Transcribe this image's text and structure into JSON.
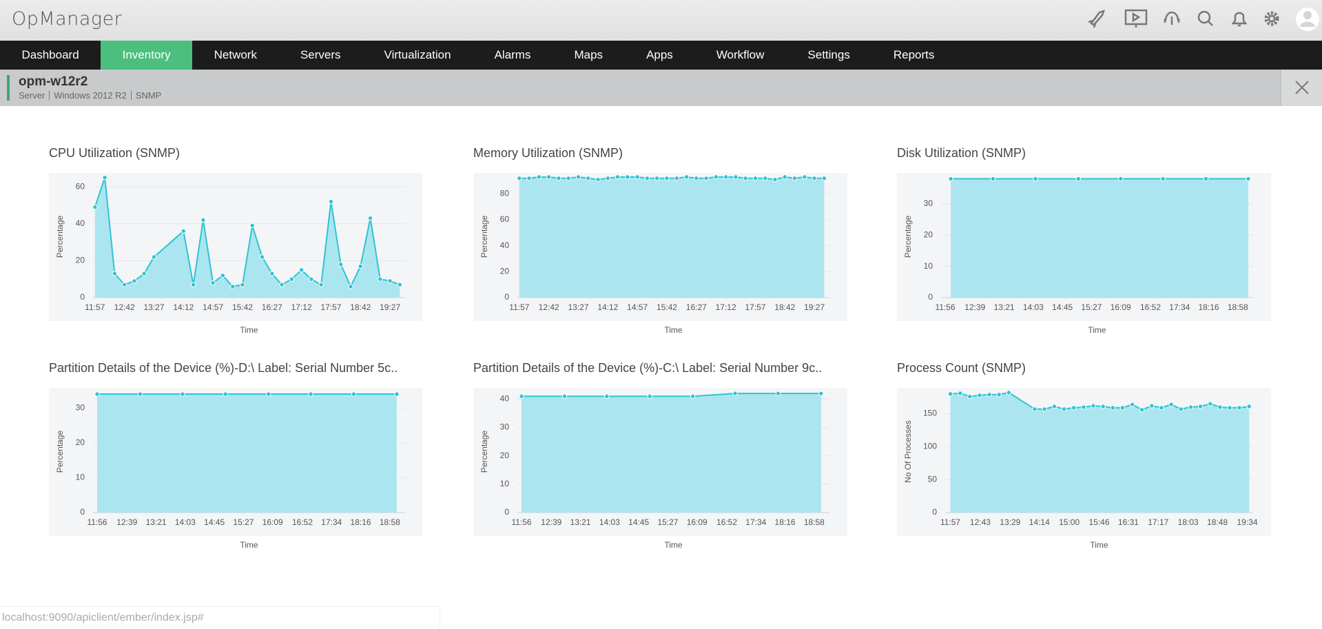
{
  "header": {
    "logo": "OpManager"
  },
  "nav": {
    "items": [
      "Dashboard",
      "Inventory",
      "Network",
      "Servers",
      "Virtualization",
      "Alarms",
      "Maps",
      "Apps",
      "Workflow",
      "Settings",
      "Reports"
    ],
    "active": 1
  },
  "device": {
    "name": "opm-w12r2",
    "details": [
      "Server",
      "Windows 2012 R2",
      "SNMP"
    ]
  },
  "status_bar": {
    "url": "localhost:9090/apiclient/ember/index.jsp#"
  },
  "chart_data": [
    {
      "type": "area",
      "title": "CPU Utilization (SNMP)",
      "x_label": "Time",
      "y_label": "Percentage",
      "color": "#2ec4d2",
      "fill": "#abe5ef",
      "grid": true,
      "x": [
        717,
        732,
        747,
        762,
        777,
        792,
        807,
        852,
        867,
        882,
        897,
        912,
        927,
        942,
        957,
        972,
        987,
        1002,
        1017,
        1032,
        1047,
        1062,
        1077,
        1092,
        1107,
        1122,
        1137,
        1152,
        1167,
        1182
      ],
      "values": [
        49,
        65,
        13,
        7,
        9,
        13,
        22,
        36,
        7,
        42,
        8,
        12,
        6,
        7,
        39,
        22,
        13,
        7,
        10,
        15,
        10,
        7,
        52,
        18,
        6,
        17,
        43,
        10,
        9,
        7
      ],
      "xlim": [
        714,
        1190
      ],
      "xticks": [
        {
          "value": 717,
          "label": "11:57"
        },
        {
          "value": 762,
          "label": "12:42"
        },
        {
          "value": 807,
          "label": "13:27"
        },
        {
          "value": 852,
          "label": "14:12"
        },
        {
          "value": 897,
          "label": "14:57"
        },
        {
          "value": 942,
          "label": "15:42"
        },
        {
          "value": 987,
          "label": "16:27"
        },
        {
          "value": 1032,
          "label": "17:12"
        },
        {
          "value": 1077,
          "label": "17:57"
        },
        {
          "value": 1122,
          "label": "18:42"
        },
        {
          "value": 1167,
          "label": "19:27"
        }
      ],
      "ylim": [
        0,
        66
      ],
      "yticks": [
        0,
        20,
        40,
        60
      ]
    },
    {
      "type": "area",
      "title": "Memory Utilization (SNMP)",
      "x_label": "Time",
      "y_label": "Percentage",
      "color": "#2ec4d2",
      "fill": "#abe5ef",
      "grid": true,
      "x": [
        717,
        732,
        747,
        762,
        777,
        792,
        807,
        822,
        837,
        852,
        867,
        882,
        897,
        912,
        927,
        942,
        957,
        972,
        987,
        1002,
        1017,
        1032,
        1047,
        1062,
        1077,
        1092,
        1107,
        1122,
        1137,
        1152,
        1167,
        1182
      ],
      "values": [
        92,
        92,
        93,
        93,
        92,
        92,
        93,
        92,
        91,
        92,
        93,
        93,
        93,
        92,
        92,
        92,
        92,
        93,
        92,
        92,
        93,
        93,
        93,
        92,
        92,
        92,
        91,
        93,
        92,
        93,
        92,
        92
      ],
      "xlim": [
        714,
        1190
      ],
      "xticks": [
        {
          "value": 717,
          "label": "11:57"
        },
        {
          "value": 762,
          "label": "12:42"
        },
        {
          "value": 807,
          "label": "13:27"
        },
        {
          "value": 852,
          "label": "14:12"
        },
        {
          "value": 897,
          "label": "14:57"
        },
        {
          "value": 942,
          "label": "15:42"
        },
        {
          "value": 987,
          "label": "16:27"
        },
        {
          "value": 1032,
          "label": "17:12"
        },
        {
          "value": 1077,
          "label": "17:57"
        },
        {
          "value": 1122,
          "label": "18:42"
        },
        {
          "value": 1167,
          "label": "19:27"
        }
      ],
      "ylim": [
        0,
        94
      ],
      "yticks": [
        0,
        20,
        40,
        60,
        80
      ]
    },
    {
      "type": "area",
      "title": "Disk Utilization (SNMP)",
      "x_label": "Time",
      "y_label": "Percentage",
      "color": "#2ec4d2",
      "fill": "#abe5ef",
      "grid": true,
      "x": [
        724,
        785,
        846,
        908,
        969,
        1030,
        1092,
        1153
      ],
      "values": [
        38,
        38,
        38,
        38,
        38,
        38,
        38,
        38
      ],
      "xlim": [
        710,
        1160
      ],
      "xticks": [
        {
          "value": 716,
          "label": "11:56"
        },
        {
          "value": 759,
          "label": "12:39"
        },
        {
          "value": 801,
          "label": "13:21"
        },
        {
          "value": 843,
          "label": "14:03"
        },
        {
          "value": 885,
          "label": "14:45"
        },
        {
          "value": 927,
          "label": "15:27"
        },
        {
          "value": 969,
          "label": "16:09"
        },
        {
          "value": 1012,
          "label": "16:52"
        },
        {
          "value": 1054,
          "label": "17:34"
        },
        {
          "value": 1096,
          "label": "18:16"
        },
        {
          "value": 1138,
          "label": "18:58"
        }
      ],
      "ylim": [
        0,
        39
      ],
      "yticks": [
        0,
        10,
        20,
        30
      ]
    },
    {
      "type": "area",
      "title": "Partition Details of the Device (%)-D:\\ Label: Serial Number 5c..",
      "x_label": "Time",
      "y_label": "Percentage",
      "color": "#2ec4d2",
      "fill": "#abe5ef",
      "grid": true,
      "x": [
        716,
        778,
        839,
        901,
        963,
        1024,
        1086,
        1148
      ],
      "values": [
        34,
        34,
        34,
        34,
        34,
        34,
        34,
        34
      ],
      "xlim": [
        710,
        1160
      ],
      "xticks": [
        {
          "value": 716,
          "label": "11:56"
        },
        {
          "value": 759,
          "label": "12:39"
        },
        {
          "value": 801,
          "label": "13:21"
        },
        {
          "value": 843,
          "label": "14:03"
        },
        {
          "value": 885,
          "label": "14:45"
        },
        {
          "value": 927,
          "label": "15:27"
        },
        {
          "value": 969,
          "label": "16:09"
        },
        {
          "value": 1012,
          "label": "16:52"
        },
        {
          "value": 1054,
          "label": "17:34"
        },
        {
          "value": 1096,
          "label": "18:16"
        },
        {
          "value": 1138,
          "label": "18:58"
        }
      ],
      "ylim": [
        0,
        35
      ],
      "yticks": [
        0,
        10,
        20,
        30
      ]
    },
    {
      "type": "area",
      "title": "Partition Details of the Device (%)-C:\\ Label: Serial Number 9c..",
      "x_label": "Time",
      "y_label": "Percentage",
      "color": "#2ec4d2",
      "fill": "#abe5ef",
      "grid": true,
      "x": [
        716,
        778,
        839,
        901,
        963,
        1024,
        1086,
        1148
      ],
      "values": [
        41,
        41,
        41,
        41,
        41,
        42,
        42,
        42
      ],
      "xlim": [
        710,
        1160
      ],
      "xticks": [
        {
          "value": 716,
          "label": "11:56"
        },
        {
          "value": 759,
          "label": "12:39"
        },
        {
          "value": 801,
          "label": "13:21"
        },
        {
          "value": 843,
          "label": "14:03"
        },
        {
          "value": 885,
          "label": "14:45"
        },
        {
          "value": 927,
          "label": "15:27"
        },
        {
          "value": 969,
          "label": "16:09"
        },
        {
          "value": 1012,
          "label": "16:52"
        },
        {
          "value": 1054,
          "label": "17:34"
        },
        {
          "value": 1096,
          "label": "18:16"
        },
        {
          "value": 1138,
          "label": "18:58"
        }
      ],
      "ylim": [
        0,
        43
      ],
      "yticks": [
        0,
        10,
        20,
        30,
        40
      ]
    },
    {
      "type": "area",
      "title": "Process Count (SNMP)",
      "x_label": "Time",
      "y_label": "No Of Processes",
      "color": "#2ec4d2",
      "fill": "#abe5ef",
      "grid": true,
      "x": [
        717,
        732,
        747,
        762,
        777,
        792,
        807,
        847,
        862,
        877,
        892,
        907,
        922,
        937,
        952,
        967,
        982,
        997,
        1012,
        1027,
        1042,
        1057,
        1072,
        1087,
        1102,
        1117,
        1132,
        1147,
        1162,
        1177
      ],
      "values": [
        180,
        181,
        176,
        178,
        179,
        179,
        182,
        157,
        157,
        161,
        157,
        159,
        160,
        162,
        161,
        159,
        159,
        164,
        156,
        162,
        159,
        164,
        157,
        160,
        161,
        165,
        160,
        159,
        159,
        161
      ],
      "xlim": [
        709,
        1183
      ],
      "xticks": [
        {
          "value": 717,
          "label": "11:57"
        },
        {
          "value": 763,
          "label": "12:43"
        },
        {
          "value": 809,
          "label": "13:29"
        },
        {
          "value": 854,
          "label": "14:14"
        },
        {
          "value": 900,
          "label": "15:00"
        },
        {
          "value": 946,
          "label": "15:46"
        },
        {
          "value": 991,
          "label": "16:31"
        },
        {
          "value": 1037,
          "label": "17:17"
        },
        {
          "value": 1083,
          "label": "18:03"
        },
        {
          "value": 1128,
          "label": "18:48"
        },
        {
          "value": 1174,
          "label": "19:34"
        }
      ],
      "ylim": [
        0,
        185
      ],
      "yticks": [
        0,
        50,
        100,
        150
      ]
    }
  ]
}
